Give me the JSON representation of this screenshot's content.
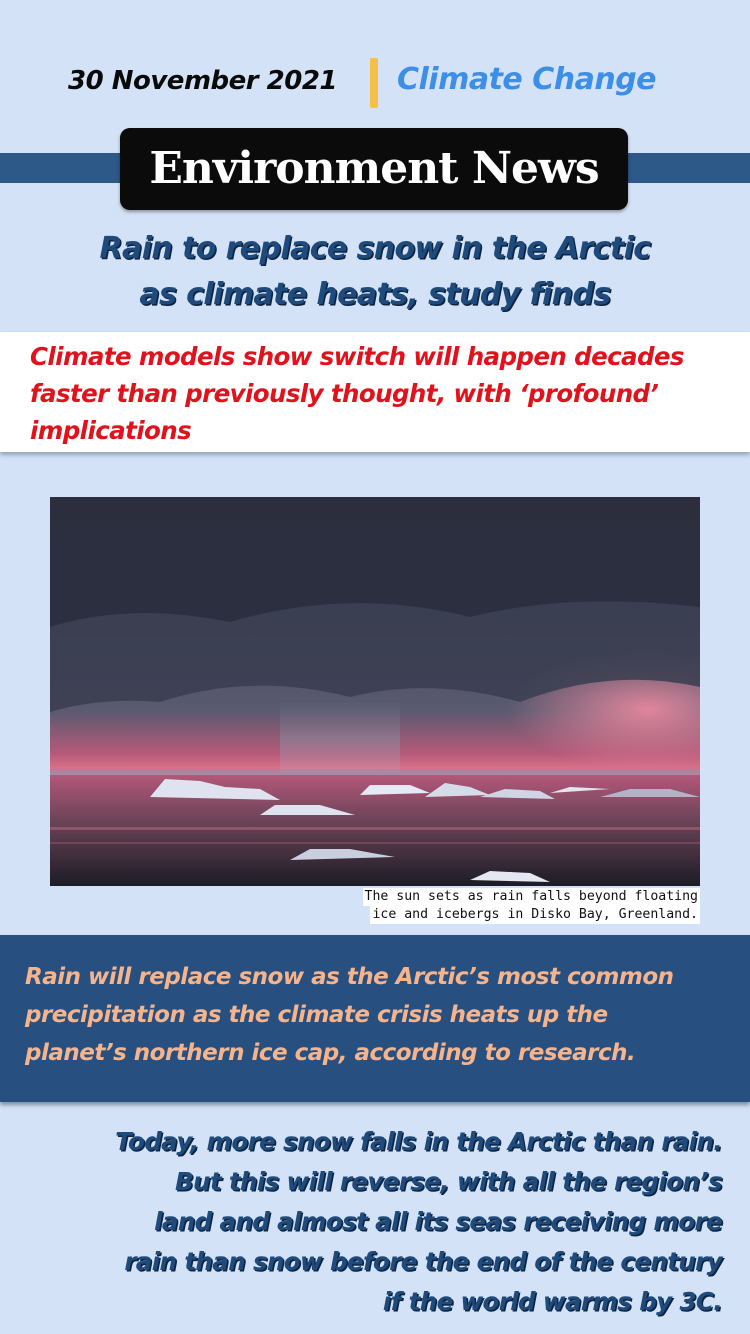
{
  "header": {
    "date": "30 November 2021",
    "category": "Climate Change",
    "masthead": "Environment News"
  },
  "article": {
    "headline_lines": [
      "Rain to replace snow in the Arctic",
      "as climate heats, study finds"
    ],
    "subheadline_lines": [
      "Climate models show switch will happen decades",
      "faster than previously thought, with ‘profound’",
      "implications"
    ],
    "photo_caption_lines": [
      "The sun sets as rain falls beyond floating",
      "ice and icebergs in Disko Bay, Greenland."
    ],
    "lead_lines": [
      "Rain will replace snow as the Arctic’s most common",
      "precipitation as the climate crisis heats up the",
      "planet’s northern ice cap, according to research."
    ],
    "body_lines": [
      "Today, more snow falls in the Arctic than rain.",
      "But this will reverse, with all the region’s",
      "land and almost all its seas receiving more",
      "rain than snow before the end of the century",
      "if the world warms by 3C."
    ]
  },
  "colors": {
    "background": "#d3e2f6",
    "accent_blue": "#3d8ee6",
    "divider_yellow": "#f5c04a",
    "navy": "#275081",
    "headline_blue": "#1f4a7c",
    "alert_red": "#e0121c",
    "lead_orange": "#f6b48c"
  }
}
